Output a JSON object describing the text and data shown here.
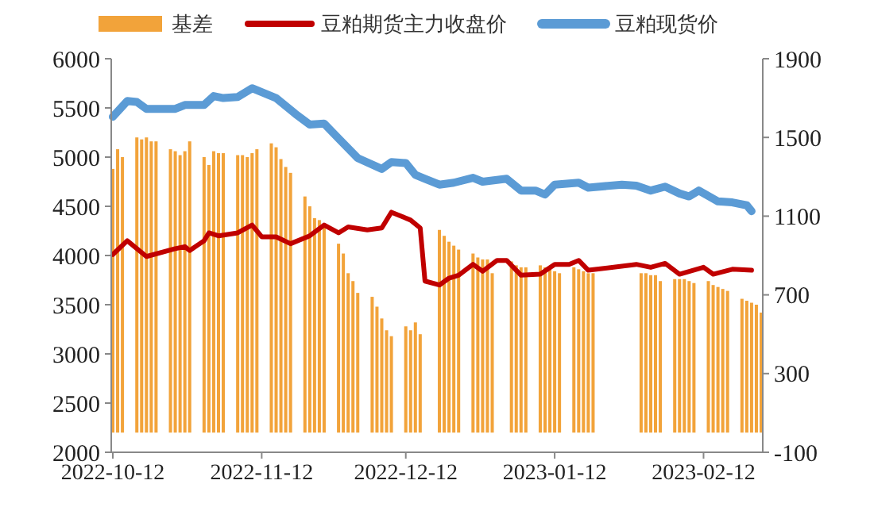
{
  "chart_data": {
    "type": "line",
    "xlim": [
      "2022-10-12",
      "2023-02-24"
    ],
    "xticks": [
      {
        "value": "2022-10-12",
        "label": "2022-10-12"
      },
      {
        "value": "2022-11-12",
        "label": "2022-11-12"
      },
      {
        "value": "2022-12-12",
        "label": "2022-12-12"
      },
      {
        "value": "2023-01-12",
        "label": "2023-01-12"
      },
      {
        "value": "2023-02-12",
        "label": "2023-02-12"
      }
    ],
    "ylim": [
      2000,
      6000
    ],
    "yticks": [
      2000,
      2500,
      3000,
      3500,
      4000,
      4500,
      5000,
      5500,
      6000
    ],
    "y2lim": [
      -100,
      1900
    ],
    "y2ticks": [
      -100,
      300,
      700,
      1100,
      1500,
      1900
    ],
    "legend": "top",
    "grid": false,
    "series": [
      {
        "name": "基差",
        "type": "bar",
        "axis": "y2",
        "color": "#f2a33a",
        "x": [
          "2022-10-12",
          "2022-10-13",
          "2022-10-14",
          "2022-10-17",
          "2022-10-18",
          "2022-10-19",
          "2022-10-20",
          "2022-10-21",
          "2022-10-24",
          "2022-10-25",
          "2022-10-26",
          "2022-10-27",
          "2022-10-28",
          "2022-10-31",
          "2022-11-01",
          "2022-11-02",
          "2022-11-03",
          "2022-11-04",
          "2022-11-07",
          "2022-11-08",
          "2022-11-09",
          "2022-11-10",
          "2022-11-11",
          "2022-11-14",
          "2022-11-15",
          "2022-11-16",
          "2022-11-17",
          "2022-11-18",
          "2022-11-21",
          "2022-11-22",
          "2022-11-23",
          "2022-11-24",
          "2022-11-25",
          "2022-11-28",
          "2022-11-29",
          "2022-11-30",
          "2022-12-01",
          "2022-12-02",
          "2022-12-05",
          "2022-12-06",
          "2022-12-07",
          "2022-12-08",
          "2022-12-09",
          "2022-12-12",
          "2022-12-13",
          "2022-12-14",
          "2022-12-15",
          "2022-12-19",
          "2022-12-20",
          "2022-12-21",
          "2022-12-22",
          "2022-12-23",
          "2022-12-26",
          "2022-12-27",
          "2022-12-28",
          "2022-12-29",
          "2022-12-30",
          "2023-01-03",
          "2023-01-04",
          "2023-01-05",
          "2023-01-06",
          "2023-01-09",
          "2023-01-10",
          "2023-01-11",
          "2023-01-12",
          "2023-01-13",
          "2023-01-16",
          "2023-01-17",
          "2023-01-18",
          "2023-01-19",
          "2023-01-20",
          "2023-01-30",
          "2023-01-31",
          "2023-02-01",
          "2023-02-02",
          "2023-02-03",
          "2023-02-06",
          "2023-02-07",
          "2023-02-08",
          "2023-02-09",
          "2023-02-10",
          "2023-02-13",
          "2023-02-14",
          "2023-02-15",
          "2023-02-16",
          "2023-02-17",
          "2023-02-20",
          "2023-02-21",
          "2023-02-22",
          "2023-02-23",
          "2023-02-24"
        ],
        "values": [
          1340,
          1440,
          1400,
          1500,
          1490,
          1500,
          1480,
          1480,
          1440,
          1430,
          1410,
          1430,
          1480,
          1400,
          1360,
          1430,
          1420,
          1420,
          1410,
          1410,
          1400,
          1420,
          1440,
          1470,
          1450,
          1390,
          1350,
          1320,
          1200,
          1150,
          1090,
          1080,
          1050,
          960,
          910,
          810,
          770,
          710,
          690,
          640,
          580,
          520,
          490,
          540,
          520,
          560,
          500,
          1030,
          1000,
          970,
          950,
          930,
          910,
          890,
          880,
          880,
          810,
          870,
          850,
          840,
          840,
          850,
          840,
          840,
          820,
          810,
          840,
          830,
          820,
          810,
          810,
          810,
          810,
          800,
          800,
          770,
          780,
          780,
          780,
          770,
          760,
          770,
          750,
          740,
          730,
          720,
          680,
          670,
          660,
          650,
          610
        ]
      },
      {
        "name": "豆粕期货主力收盘价",
        "color": "#c00000",
        "x": [
          "2022-10-12",
          "2022-10-15",
          "2022-10-19",
          "2022-10-25",
          "2022-10-27",
          "2022-10-28",
          "2022-10-31",
          "2022-11-01",
          "2022-11-03",
          "2022-11-07",
          "2022-11-10",
          "2022-11-12",
          "2022-11-15",
          "2022-11-18",
          "2022-11-22",
          "2022-11-25",
          "2022-11-28",
          "2022-11-30",
          "2022-12-04",
          "2022-12-07",
          "2022-12-09",
          "2022-12-13",
          "2022-12-15",
          "2022-12-16",
          "2022-12-19",
          "2022-12-21",
          "2022-12-23",
          "2022-12-26",
          "2022-12-28",
          "2022-12-31",
          "2023-01-02",
          "2023-01-05",
          "2023-01-09",
          "2023-01-12",
          "2023-01-15",
          "2023-01-17",
          "2023-01-19",
          "2023-01-29",
          "2023-02-01",
          "2023-02-04",
          "2023-02-07",
          "2023-02-12",
          "2023-02-14",
          "2023-02-18",
          "2023-02-22"
        ],
        "values": [
          4010,
          4150,
          3990,
          4070,
          4090,
          4050,
          4150,
          4230,
          4200,
          4230,
          4310,
          4190,
          4190,
          4120,
          4200,
          4310,
          4230,
          4290,
          4260,
          4280,
          4440,
          4360,
          4280,
          3740,
          3700,
          3770,
          3800,
          3910,
          3840,
          3950,
          3950,
          3800,
          3810,
          3910,
          3910,
          3950,
          3850,
          3910,
          3880,
          3920,
          3810,
          3880,
          3810,
          3860,
          3850
        ]
      },
      {
        "name": "豆粕现货价",
        "color": "#5b9bd5",
        "x": [
          "2022-10-12",
          "2022-10-15",
          "2022-10-17",
          "2022-10-19",
          "2022-10-25",
          "2022-10-27",
          "2022-10-31",
          "2022-11-02",
          "2022-11-04",
          "2022-11-07",
          "2022-11-10",
          "2022-11-15",
          "2022-11-19",
          "2022-11-22",
          "2022-11-25",
          "2022-11-28",
          "2022-12-02",
          "2022-12-07",
          "2022-12-09",
          "2022-12-12",
          "2022-12-14",
          "2022-12-16",
          "2022-12-19",
          "2022-12-22",
          "2022-12-26",
          "2022-12-28",
          "2023-01-02",
          "2023-01-05",
          "2023-01-08",
          "2023-01-10",
          "2023-01-12",
          "2023-01-17",
          "2023-01-19",
          "2023-01-26",
          "2023-01-29",
          "2023-02-01",
          "2023-02-04",
          "2023-02-07",
          "2023-02-09",
          "2023-02-11",
          "2023-02-15",
          "2023-02-18",
          "2023-02-21",
          "2023-02-22"
        ],
        "values": [
          5410,
          5570,
          5560,
          5490,
          5490,
          5530,
          5530,
          5620,
          5600,
          5610,
          5700,
          5600,
          5440,
          5330,
          5340,
          5190,
          4990,
          4880,
          4950,
          4940,
          4820,
          4780,
          4720,
          4740,
          4790,
          4750,
          4780,
          4660,
          4660,
          4620,
          4720,
          4740,
          4690,
          4720,
          4710,
          4660,
          4700,
          4630,
          4600,
          4660,
          4550,
          4540,
          4510,
          4450
        ]
      }
    ]
  }
}
